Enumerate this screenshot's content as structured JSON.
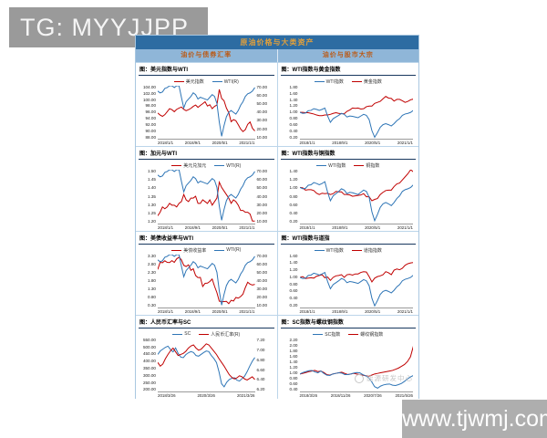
{
  "watermarks": {
    "tg": "TG: MYYJJPP",
    "site": "www.tjwmj.com",
    "energy_center": "能源研发中心"
  },
  "panel": {
    "title": "原油价格与大类资产",
    "columns": [
      "油价与债券汇率",
      "油价与股市大宗"
    ]
  },
  "colors": {
    "line_red": "#c00000",
    "line_blue": "#2e75b6",
    "header_bg": "#2d6ca2",
    "header_text": "#e3a03a",
    "subheader_bg": "#8fb6d8",
    "subheader_text": "#bb5a16",
    "grid_border": "#bcd5ea",
    "title_underline": "#17375e"
  },
  "chart_data": [
    {
      "type": "line",
      "title": "图：美元指数与WTI",
      "legend": [
        {
          "name": "美元指数",
          "color": "#c00000"
        },
        {
          "name": "WTI(R)",
          "color": "#2e75b6"
        }
      ],
      "left_ticks": [
        "104.00",
        "102.00",
        "100.00",
        "98.00",
        "96.00",
        "94.00",
        "92.00",
        "90.00",
        "88.00"
      ],
      "right_ticks": [
        "70.00",
        "60.00",
        "50.00",
        "40.00",
        "30.00",
        "20.00",
        "10.00"
      ],
      "x_ticks": [
        "2018/1/1",
        "2018/9/1",
        "2020/5/1",
        "2021/1/1"
      ],
      "series": [
        {
          "name": "美元指数",
          "color": "#c00000",
          "range": [
            88,
            104
          ],
          "values": [
            95.8,
            95.2,
            94.8,
            95.3,
            96.2,
            97.1,
            96.8,
            96.2,
            96.9,
            97.3,
            97.6,
            96.9,
            96.5,
            96.8,
            97.2,
            97.8,
            98.2,
            97.5,
            98.1,
            98.6,
            99.2,
            97.9,
            98.3,
            97.1,
            97.8,
            98.2,
            102.9,
            100.2,
            99.5,
            97.3,
            95.9,
            93.2,
            93.8,
            93.5,
            92.3,
            91.0,
            90.2,
            90.8,
            92.4,
            93.1,
            91.2,
            90.4
          ]
        },
        {
          "name": "WTI(R)",
          "color": "#2e75b6",
          "range": [
            10,
            70
          ],
          "values": [
            64,
            62,
            63,
            67,
            68,
            71,
            70,
            68,
            70,
            72,
            57,
            45,
            52,
            55,
            58,
            62,
            60,
            55,
            57,
            56,
            55,
            54,
            57,
            60,
            58,
            50,
            29,
            13,
            25,
            35,
            40,
            42,
            40,
            38,
            42,
            48,
            52,
            58,
            61,
            62,
            64,
            68
          ]
        }
      ]
    },
    {
      "type": "line",
      "title": "图：WTI指数与黄金指数",
      "legend": [
        {
          "name": "WTI指数",
          "color": "#2e75b6"
        },
        {
          "name": "黄金指数",
          "color": "#c00000"
        }
      ],
      "left_ticks": [
        "1.80",
        "1.60",
        "1.40",
        "1.20",
        "1.00",
        "0.80",
        "0.60",
        "0.40",
        "0.20"
      ],
      "right_ticks": null,
      "x_ticks": [
        "2018/1/1",
        "2018/9/1",
        "2020/5/1",
        "2021/1/1"
      ],
      "series": [
        {
          "name": "黄金指数",
          "color": "#c00000",
          "range": [
            0.2,
            1.8
          ],
          "values": [
            1.0,
            1.0,
            0.99,
            0.99,
            0.97,
            0.95,
            0.92,
            0.9,
            0.9,
            0.92,
            0.92,
            0.94,
            0.97,
            0.99,
            0.97,
            0.96,
            0.96,
            1.03,
            1.07,
            1.13,
            1.12,
            1.13,
            1.1,
            1.11,
            1.17,
            1.19,
            1.19,
            1.27,
            1.3,
            1.33,
            1.41,
            1.48,
            1.43,
            1.42,
            1.34,
            1.39,
            1.39,
            1.35,
            1.3,
            1.33,
            1.38,
            1.4
          ]
        },
        {
          "name": "WTI指数",
          "color": "#2e75b6",
          "range": [
            0.2,
            1.8
          ],
          "values": [
            1.0,
            0.97,
            0.98,
            1.05,
            1.06,
            1.11,
            1.09,
            1.06,
            1.09,
            1.13,
            0.89,
            0.7,
            0.81,
            0.86,
            0.91,
            0.97,
            0.94,
            0.86,
            0.89,
            0.88,
            0.86,
            0.84,
            0.89,
            0.94,
            0.91,
            0.78,
            0.45,
            0.25,
            0.39,
            0.55,
            0.63,
            0.66,
            0.63,
            0.59,
            0.66,
            0.75,
            0.81,
            0.91,
            0.95,
            0.97,
            1.0,
            1.06
          ]
        }
      ]
    },
    {
      "type": "line",
      "title": "图：加元与WTI",
      "legend": [
        {
          "name": "美元兑加元",
          "color": "#c00000"
        },
        {
          "name": "WTI(R)",
          "color": "#2e75b6"
        }
      ],
      "left_ticks": [
        "1.50",
        "1.45",
        "1.40",
        "1.35",
        "1.30",
        "1.25",
        "1.20"
      ],
      "right_ticks": [
        "70.00",
        "60.00",
        "50.00",
        "40.00",
        "30.00",
        "20.00",
        "10.00"
      ],
      "x_ticks": [
        "2018/1/1",
        "2018/9/1",
        "2020/5/1",
        "2021/1/1"
      ],
      "series": [
        {
          "name": "美元兑加元",
          "color": "#c00000",
          "range": [
            1.2,
            1.5
          ],
          "values": [
            1.24,
            1.26,
            1.29,
            1.28,
            1.29,
            1.31,
            1.3,
            1.3,
            1.29,
            1.31,
            1.32,
            1.36,
            1.33,
            1.32,
            1.34,
            1.34,
            1.35,
            1.31,
            1.31,
            1.33,
            1.32,
            1.31,
            1.33,
            1.3,
            1.32,
            1.34,
            1.43,
            1.4,
            1.38,
            1.36,
            1.34,
            1.31,
            1.33,
            1.32,
            1.3,
            1.27,
            1.27,
            1.26,
            1.26,
            1.25,
            1.21,
            1.21
          ]
        },
        {
          "name": "WTI(R)",
          "color": "#2e75b6",
          "range": [
            10,
            70
          ],
          "values": [
            64,
            62,
            63,
            67,
            68,
            71,
            70,
            68,
            70,
            72,
            57,
            45,
            52,
            55,
            58,
            62,
            60,
            55,
            57,
            56,
            55,
            54,
            57,
            60,
            58,
            50,
            29,
            13,
            25,
            35,
            40,
            42,
            40,
            38,
            42,
            48,
            52,
            58,
            61,
            62,
            64,
            68
          ]
        }
      ]
    },
    {
      "type": "line",
      "title": "图：WTI指数与铜指数",
      "legend": [
        {
          "name": "WTI指数",
          "color": "#2e75b6"
        },
        {
          "name": "铜指数",
          "color": "#c00000"
        }
      ],
      "left_ticks": [
        "1.40",
        "1.20",
        "1.00",
        "0.80",
        "0.60",
        "0.40",
        "0.20"
      ],
      "right_ticks": null,
      "x_ticks": [
        "2018/1/1",
        "2018/9/1",
        "2020/5/1",
        "2021/1/1"
      ],
      "series": [
        {
          "name": "铜指数",
          "color": "#c00000",
          "range": [
            0.2,
            1.4
          ],
          "values": [
            1.0,
            0.99,
            0.94,
            0.95,
            0.95,
            0.93,
            0.87,
            0.84,
            0.87,
            0.86,
            0.87,
            0.84,
            0.86,
            0.91,
            0.9,
            0.9,
            0.84,
            0.84,
            0.83,
            0.8,
            0.81,
            0.82,
            0.83,
            0.86,
            0.79,
            0.79,
            0.7,
            0.73,
            0.75,
            0.84,
            0.89,
            0.93,
            0.94,
            0.94,
            1.02,
            1.08,
            1.1,
            1.17,
            1.24,
            1.31,
            1.4,
            1.35
          ]
        },
        {
          "name": "WTI指数",
          "color": "#2e75b6",
          "range": [
            0.2,
            1.4
          ],
          "values": [
            1.0,
            0.97,
            0.98,
            1.05,
            1.06,
            1.11,
            1.09,
            1.06,
            1.09,
            1.13,
            0.89,
            0.7,
            0.81,
            0.86,
            0.91,
            0.97,
            0.94,
            0.86,
            0.89,
            0.88,
            0.86,
            0.84,
            0.89,
            0.94,
            0.91,
            0.78,
            0.45,
            0.25,
            0.39,
            0.55,
            0.63,
            0.66,
            0.63,
            0.59,
            0.66,
            0.75,
            0.81,
            0.91,
            0.95,
            0.97,
            1.0,
            1.06
          ]
        }
      ]
    },
    {
      "type": "line",
      "title": "图：美债收益率与WTI",
      "legend": [
        {
          "name": "美债收益率",
          "color": "#c00000"
        },
        {
          "name": "WTI(R)",
          "color": "#2e75b6"
        }
      ],
      "left_ticks": [
        "3.30",
        "2.80",
        "2.30",
        "1.80",
        "1.30",
        "0.80",
        "0.30"
      ],
      "right_ticks": [
        "70.00",
        "60.00",
        "50.00",
        "40.00",
        "30.00",
        "20.00",
        "10.00"
      ],
      "x_ticks": [
        "2018/1/1",
        "2018/9/1",
        "2020/5/1",
        "2021/1/1"
      ],
      "series": [
        {
          "name": "美债收益率",
          "color": "#c00000",
          "range": [
            0.3,
            3.3
          ],
          "values": [
            2.46,
            2.86,
            2.84,
            2.95,
            2.86,
            2.85,
            2.96,
            2.86,
            3.06,
            3.15,
            3.01,
            2.69,
            2.63,
            2.72,
            2.41,
            2.5,
            2.12,
            2.0,
            2.01,
            1.5,
            1.68,
            1.69,
            1.78,
            1.92,
            1.51,
            1.15,
            0.67,
            0.64,
            0.65,
            0.66,
            0.53,
            0.72,
            0.68,
            0.88,
            0.84,
            0.93,
            1.07,
            1.44,
            1.74,
            1.63,
            1.58,
            1.62
          ]
        },
        {
          "name": "WTI(R)",
          "color": "#2e75b6",
          "range": [
            10,
            70
          ],
          "values": [
            64,
            62,
            63,
            67,
            68,
            71,
            70,
            68,
            70,
            72,
            57,
            45,
            52,
            55,
            58,
            62,
            60,
            55,
            57,
            56,
            55,
            54,
            57,
            60,
            58,
            50,
            29,
            13,
            25,
            35,
            40,
            42,
            40,
            38,
            42,
            48,
            52,
            58,
            61,
            62,
            64,
            68
          ]
        }
      ]
    },
    {
      "type": "line",
      "title": "图：WTI指数与道指",
      "legend": [
        {
          "name": "WTI指数",
          "color": "#2e75b6"
        },
        {
          "name": "道指指数",
          "color": "#c00000"
        }
      ],
      "left_ticks": [
        "1.60",
        "1.40",
        "1.20",
        "1.00",
        "0.80",
        "0.60",
        "0.40",
        "0.20"
      ],
      "right_ticks": null,
      "x_ticks": [
        "2018/1/1",
        "2018/9/1",
        "2020/5/1",
        "2021/1/1"
      ],
      "series": [
        {
          "name": "道指指数",
          "color": "#c00000",
          "range": [
            0.2,
            1.6
          ],
          "values": [
            1.0,
            1.02,
            0.97,
            0.98,
            0.99,
            0.98,
            1.03,
            1.05,
            1.07,
            0.99,
            1.01,
            0.92,
            1.0,
            1.04,
            1.05,
            1.07,
            1.0,
            1.07,
            1.08,
            1.06,
            1.09,
            1.09,
            1.13,
            1.15,
            1.14,
            1.02,
            0.88,
            0.98,
            1.02,
            1.04,
            1.07,
            1.15,
            1.12,
            1.07,
            1.19,
            1.22,
            1.2,
            1.24,
            1.32,
            1.36,
            1.38,
            1.39
          ]
        },
        {
          "name": "WTI指数",
          "color": "#2e75b6",
          "range": [
            0.2,
            1.6
          ],
          "values": [
            1.0,
            0.97,
            0.98,
            1.05,
            1.06,
            1.11,
            1.09,
            1.06,
            1.09,
            1.13,
            0.89,
            0.7,
            0.81,
            0.86,
            0.91,
            0.97,
            0.94,
            0.86,
            0.89,
            0.88,
            0.86,
            0.84,
            0.89,
            0.94,
            0.91,
            0.78,
            0.45,
            0.25,
            0.39,
            0.55,
            0.63,
            0.66,
            0.63,
            0.59,
            0.66,
            0.75,
            0.81,
            0.91,
            0.95,
            0.97,
            1.0,
            1.06
          ]
        }
      ]
    },
    {
      "type": "line",
      "title": "图：人民币汇率与SC",
      "legend": [
        {
          "name": "SC",
          "color": "#2e75b6"
        },
        {
          "name": "人民币汇率(R)",
          "color": "#c00000"
        }
      ],
      "left_ticks": [
        "550.00",
        "500.00",
        "450.00",
        "400.00",
        "350.00",
        "300.00",
        "250.00",
        "200.00"
      ],
      "right_ticks": [
        "7.20",
        "7.00",
        "6.80",
        "6.60",
        "6.40",
        "6.20"
      ],
      "x_ticks": [
        "2018/3/26",
        "2020/3/26",
        "2021/3/26"
      ],
      "series": [
        {
          "name": "SC",
          "color": "#2e75b6",
          "range": [
            200,
            550
          ],
          "values": [
            445,
            468,
            480,
            492,
            500,
            478,
            462,
            488,
            452,
            428,
            424,
            444,
            456,
            464,
            458,
            438,
            434,
            446,
            458,
            468,
            464,
            438,
            418,
            392,
            330,
            252,
            232,
            262,
            280,
            288,
            292,
            276,
            270,
            286,
            302,
            332,
            368,
            400,
            425
          ]
        },
        {
          "name": "人民币汇率(R)",
          "color": "#c00000",
          "range": [
            6.2,
            7.2
          ],
          "values": [
            6.75,
            6.68,
            6.72,
            6.82,
            6.9,
            6.97,
            7.02,
            6.95,
            6.88,
            6.9,
            6.92,
            6.96,
            7.02,
            7.06,
            7.08,
            7.02,
            6.98,
            7.0,
            7.05,
            7.1,
            7.08,
            7.02,
            6.96,
            6.9,
            6.82,
            6.75,
            6.68,
            6.6,
            6.52,
            6.47,
            6.44,
            6.46,
            6.5,
            6.48,
            6.44,
            6.42,
            6.45,
            6.48,
            6.43
          ]
        }
      ]
    },
    {
      "type": "line",
      "title": "图：SC指数与螺纹钢指数",
      "legend": [
        {
          "name": "SC指数",
          "color": "#2e75b6"
        },
        {
          "name": "螺纹钢指数",
          "color": "#c00000"
        }
      ],
      "left_ticks": [
        "2.20",
        "2.00",
        "1.80",
        "1.60",
        "1.40",
        "1.20",
        "1.00",
        "0.80",
        "0.60",
        "0.40"
      ],
      "right_ticks": null,
      "x_ticks": [
        "2018/3/26",
        "2018/11/26",
        "2020/7/26",
        "2021/5/26"
      ],
      "series": [
        {
          "name": "螺纹钢指数",
          "color": "#c00000",
          "range": [
            0.4,
            2.2
          ],
          "values": [
            1.0,
            1.02,
            1.05,
            1.08,
            1.1,
            1.12,
            1.08,
            1.1,
            1.05,
            0.98,
            0.96,
            1.0,
            1.02,
            1.04,
            1.06,
            1.02,
            0.98,
            1.0,
            1.02,
            1.0,
            0.98,
            0.96,
            0.94,
            0.92,
            0.96,
            1.0,
            1.02,
            1.04,
            1.06,
            1.08,
            1.1,
            1.12,
            1.16,
            1.2,
            1.26,
            1.32,
            1.42,
            1.58,
            1.95
          ]
        },
        {
          "name": "SC指数",
          "color": "#2e75b6",
          "range": [
            0.4,
            2.2
          ],
          "values": [
            1.0,
            1.05,
            1.08,
            1.11,
            1.12,
            1.07,
            1.04,
            1.1,
            1.02,
            0.96,
            0.95,
            1.0,
            1.02,
            1.04,
            1.03,
            0.98,
            0.98,
            1.0,
            1.03,
            1.05,
            1.04,
            0.98,
            0.94,
            0.88,
            0.74,
            0.57,
            0.52,
            0.59,
            0.63,
            0.65,
            0.66,
            0.62,
            0.61,
            0.64,
            0.68,
            0.75,
            0.83,
            0.9,
            0.95
          ]
        }
      ]
    }
  ]
}
